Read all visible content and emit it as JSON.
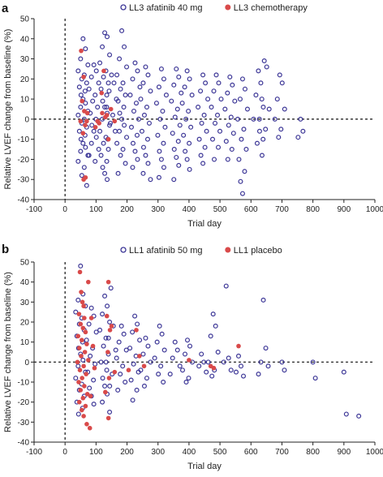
{
  "chart_data": [
    {
      "type": "scatter",
      "panel_label": "a",
      "xlabel": "Trial day",
      "ylabel": "Relative LVEF change from baseline (%)",
      "xlim": [
        -100,
        1000
      ],
      "ylim": [
        -40,
        50
      ],
      "xticks": [
        -100,
        0,
        100,
        200,
        300,
        400,
        500,
        600,
        700,
        800,
        900,
        1000
      ],
      "yticks": [
        -40,
        -30,
        -20,
        -10,
        0,
        10,
        20,
        30,
        40,
        50
      ],
      "reference_lines": {
        "x": 0,
        "y": 0,
        "style": "dashed"
      },
      "legend_position": "top",
      "series": [
        {
          "name": "LL3 afatinib 40 mg",
          "marker": "open-circle",
          "color": "#3b3596",
          "clusters": [
            {
              "x": 58,
              "y_values": [
                40,
                35,
                30,
                27,
                24,
                22,
                20,
                18,
                16,
                14,
                12,
                10,
                8,
                6,
                4,
                2,
                0,
                -2,
                -4,
                -6,
                -8,
                -10,
                -12,
                -14,
                -16,
                -18,
                -21,
                -24,
                -28,
                -33
              ]
            },
            {
              "x": 93,
              "y_values": [
                27,
                24,
                21,
                18,
                15,
                12,
                9,
                6,
                3,
                0,
                -3,
                -6,
                -9,
                -12,
                -15,
                -18,
                -21
              ]
            },
            {
              "x": 128,
              "y_values": [
                43,
                41,
                36,
                32,
                28,
                24,
                21,
                18,
                15,
                12,
                9,
                6,
                3,
                0,
                -3,
                -6,
                -9,
                -12,
                -15,
                -18,
                -21,
                -24,
                -27,
                -30
              ]
            },
            {
              "x": 150,
              "y_values": [
                22,
                18,
                14,
                10,
                6,
                2,
                -2,
                -6,
                -10
              ]
            },
            {
              "x": 183,
              "y_values": [
                44,
                36,
                30,
                26,
                22,
                18,
                15,
                12,
                9,
                6,
                3,
                0,
                -3,
                -6,
                -9,
                -12,
                -15,
                -18,
                -22,
                -27
              ]
            },
            {
              "x": 226,
              "y_values": [
                28,
                24,
                20,
                16,
                12,
                8,
                4,
                0,
                -4,
                -8,
                -12,
                -16,
                -20,
                -24
              ]
            },
            {
              "x": 260,
              "y_values": [
                26,
                22,
                18,
                14,
                10,
                6,
                2,
                -2,
                -6,
                -10,
                -14,
                -18,
                -22,
                -27,
                -30
              ]
            },
            {
              "x": 311,
              "y_values": [
                25,
                20,
                16,
                12,
                8,
                4,
                0,
                -4,
                -8,
                -12,
                -16,
                -20,
                -24,
                -29
              ]
            },
            {
              "x": 359,
              "y_values": [
                25,
                21,
                17,
                13,
                9,
                5,
                1,
                -3,
                -7,
                -11,
                -15,
                -19,
                -23,
                -30
              ]
            },
            {
              "x": 394,
              "y_values": [
                24,
                20,
                16,
                12,
                8,
                4,
                0,
                -4,
                -8,
                -12,
                -16,
                -20,
                -25
              ]
            },
            {
              "x": 445,
              "y_values": [
                22,
                18,
                14,
                10,
                6,
                2,
                -2,
                -6,
                -10,
                -14,
                -18,
                -22
              ]
            },
            {
              "x": 488,
              "y_values": [
                22,
                18,
                14,
                10,
                6,
                2,
                -2,
                -6,
                -10,
                -14,
                -20
              ]
            },
            {
              "x": 532,
              "y_values": [
                21,
                17,
                13,
                9,
                5,
                1,
                -3,
                -7,
                -11,
                -15,
                -20
              ]
            },
            {
              "x": 573,
              "y_values": [
                20,
                15,
                10,
                5,
                0,
                -5,
                -10,
                -15,
                -20,
                -26,
                -31,
                -37
              ]
            },
            {
              "x": 624,
              "y_values": [
                24,
                18,
                12,
                6,
                0,
                -6,
                -12,
                -18
              ]
            },
            {
              "x": 643,
              "y_values": [
                29,
                26,
                10,
                5,
                0,
                -5,
                -10
              ]
            },
            {
              "x": 693,
              "y_values": [
                22,
                18,
                10,
                5,
                0,
                -5,
                -9
              ]
            },
            {
              "x": 760,
              "y_values": [
                0,
                -6,
                -9
              ]
            }
          ]
        },
        {
          "name": "LL3 chemotherapy",
          "marker": "filled-circle",
          "color": "#d94a4a",
          "points": [
            [
              52,
              34
            ],
            [
              60,
              21
            ],
            [
              55,
              9
            ],
            [
              62,
              4
            ],
            [
              50,
              -1
            ],
            [
              65,
              -3
            ],
            [
              70,
              -1
            ],
            [
              58,
              -7
            ],
            [
              72,
              3
            ],
            [
              66,
              -29
            ],
            [
              60,
              -30
            ],
            [
              125,
              24
            ],
            [
              118,
              13
            ],
            [
              120,
              3
            ],
            [
              130,
              1
            ],
            [
              105,
              -1
            ],
            [
              110,
              -2
            ],
            [
              98,
              -4
            ],
            [
              140,
              -10
            ],
            [
              148,
              5
            ],
            [
              160,
              -1
            ],
            [
              135,
              2
            ]
          ]
        }
      ]
    },
    {
      "type": "scatter",
      "panel_label": "b",
      "xlabel": "Trial day",
      "ylabel": "Relative LVEF change from baseline (%)",
      "xlim": [
        -100,
        1000
      ],
      "ylim": [
        -40,
        50
      ],
      "xticks": [
        -100,
        0,
        100,
        200,
        300,
        400,
        500,
        600,
        700,
        800,
        900,
        1000
      ],
      "yticks": [
        -40,
        -30,
        -20,
        -10,
        0,
        10,
        20,
        30,
        40,
        50
      ],
      "reference_lines": {
        "x": 0,
        "y": 0,
        "style": "dashed"
      },
      "legend_position": "top",
      "series": [
        {
          "name": "LL1 afatinib 50 mg",
          "marker": "open-circle",
          "color": "#3b3596",
          "clusters": [
            {
              "x": 50,
              "y_values": [
                48,
                34,
                31,
                28,
                25,
                22,
                19,
                16,
                13,
                10,
                7,
                4,
                1,
                -2,
                -5,
                -8,
                -11,
                -14,
                -17,
                -20,
                -23,
                -26
              ]
            },
            {
              "x": 85,
              "y_values": [
                27,
                23,
                19,
                15,
                11,
                7,
                3,
                -1,
                -5,
                -9,
                -13,
                -17,
                -21
              ]
            },
            {
              "x": 128,
              "y_values": [
                33,
                28,
                24,
                20,
                16,
                12,
                8,
                4,
                0,
                -4,
                -8,
                -12,
                -16,
                -20,
                -25
              ]
            },
            {
              "x": 148,
              "y_values": [
                37,
                18,
                12,
                6,
                0,
                -6,
                -12
              ]
            },
            {
              "x": 182,
              "y_values": [
                18,
                14,
                10,
                6,
                2,
                -2,
                -6,
                -10,
                -14
              ]
            },
            {
              "x": 225,
              "y_values": [
                23,
                19,
                15,
                11,
                7,
                3,
                -1,
                -5,
                -9,
                -14,
                -19
              ]
            },
            {
              "x": 260,
              "y_values": [
                12,
                8,
                4,
                0,
                -4,
                -8,
                -12
              ]
            },
            {
              "x": 305,
              "y_values": [
                18,
                14,
                10,
                6,
                2,
                -2,
                -6,
                -10
              ]
            },
            {
              "x": 355,
              "y_values": [
                10,
                6,
                2,
                -2,
                -6
              ]
            },
            {
              "x": 395,
              "y_values": [
                11,
                8,
                4,
                0,
                -4,
                -8,
                -10
              ]
            },
            {
              "x": 440,
              "y_values": [
                4,
                0,
                -2,
                -5
              ]
            },
            {
              "x": 478,
              "y_values": [
                24,
                18,
                13,
                5,
                0,
                -4,
                -7
              ]
            },
            {
              "x": 520,
              "y_values": [
                38,
                2,
                0,
                -4
              ]
            },
            {
              "x": 560,
              "y_values": [
                3,
                -2,
                -5,
                -7
              ]
            },
            {
              "x": 640,
              "y_values": [
                31,
                7,
                0,
                -2,
                -6
              ]
            },
            {
              "x": 700,
              "y_values": [
                0,
                -4
              ]
            },
            {
              "x": 800,
              "y_values": [
                0,
                -8
              ]
            },
            {
              "x": 900,
              "y_values": [
                -5,
                -26
              ]
            },
            {
              "x": 948,
              "y_values": [
                -27
              ]
            }
          ]
        },
        {
          "name": "LL1 placebo",
          "marker": "filled-circle",
          "color": "#d94a4a",
          "points": [
            [
              48,
              45
            ],
            [
              52,
              35
            ],
            [
              56,
              30
            ],
            [
              60,
              28
            ],
            [
              45,
              24
            ],
            [
              62,
              22
            ],
            [
              50,
              19
            ],
            [
              58,
              17
            ],
            [
              66,
              15
            ],
            [
              42,
              13
            ],
            [
              54,
              11
            ],
            [
              70,
              9
            ],
            [
              46,
              7
            ],
            [
              64,
              5
            ],
            [
              52,
              3
            ],
            [
              75,
              1
            ],
            [
              40,
              0
            ],
            [
              60,
              -2
            ],
            [
              48,
              -4
            ],
            [
              68,
              -6
            ],
            [
              55,
              -8
            ],
            [
              44,
              -10
            ],
            [
              62,
              -12
            ],
            [
              50,
              -14
            ],
            [
              72,
              -16
            ],
            [
              58,
              -18
            ],
            [
              46,
              -20
            ],
            [
              66,
              -22
            ],
            [
              54,
              -24
            ],
            [
              60,
              -27
            ],
            [
              70,
              -31
            ],
            [
              75,
              40
            ],
            [
              85,
              22
            ],
            [
              90,
              8
            ],
            [
              95,
              -3
            ],
            [
              82,
              -17
            ],
            [
              80,
              -33
            ],
            [
              140,
              40
            ],
            [
              135,
              23
            ],
            [
              145,
              16
            ],
            [
              150,
              18
            ],
            [
              138,
              5
            ],
            [
              142,
              -8
            ],
            [
              130,
              -15
            ],
            [
              140,
              -28
            ],
            [
              160,
              -5
            ],
            [
              230,
              16
            ],
            [
              240,
              3
            ],
            [
              205,
              -4
            ],
            [
              255,
              -2
            ],
            [
              400,
              1
            ],
            [
              470,
              -2
            ],
            [
              480,
              -3
            ],
            [
              560,
              8
            ]
          ]
        }
      ]
    }
  ]
}
